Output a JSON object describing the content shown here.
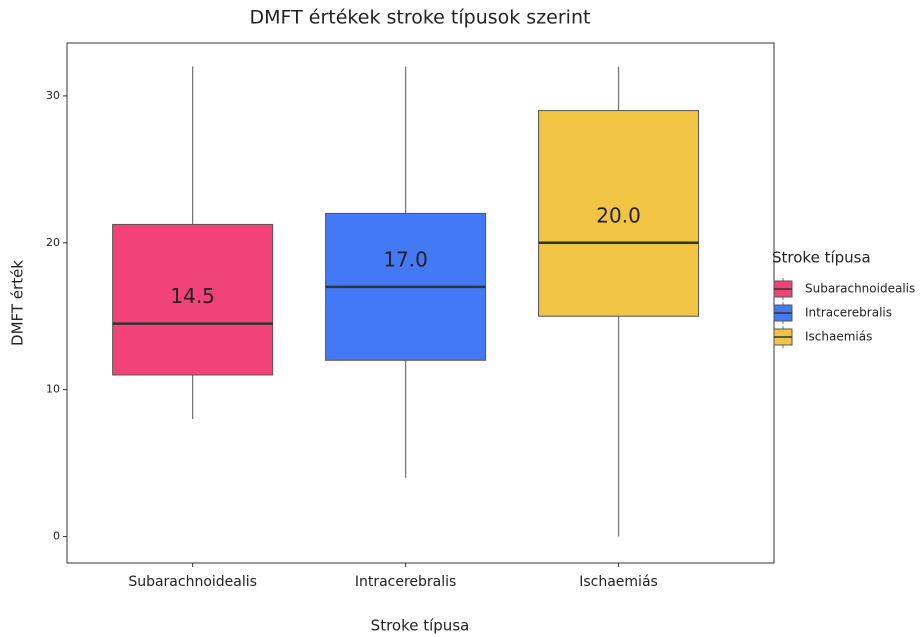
{
  "chart_data": {
    "type": "box",
    "title": "DMFT értékek stroke típusok szerint",
    "x_label": "Stroke típusa",
    "y_label": "DMFT érték",
    "legend_title": "Stroke típusa",
    "legend": "right",
    "categories": [
      "Subarachnoidealis",
      "Intracerebralis",
      "Ischaemiás"
    ],
    "series": [
      {
        "name": "Subarachnoidealis",
        "color": "#f2427a",
        "min": 8,
        "q1": 11,
        "median": 14.5,
        "q3": 21.25,
        "max": 32,
        "median_label": "14.5"
      },
      {
        "name": "Intracerebralis",
        "color": "#4479f5",
        "min": 4,
        "q1": 12,
        "median": 17,
        "q3": 22,
        "max": 32,
        "median_label": "17.0"
      },
      {
        "name": "Ischaemiás",
        "color": "#f2c443",
        "min": 0,
        "q1": 15,
        "median": 20,
        "q3": 29,
        "max": 32,
        "median_label": "20.0"
      }
    ],
    "ylim": [
      -1.8,
      33.6
    ],
    "yticks": [
      0,
      10,
      20,
      30
    ],
    "grid": false
  }
}
